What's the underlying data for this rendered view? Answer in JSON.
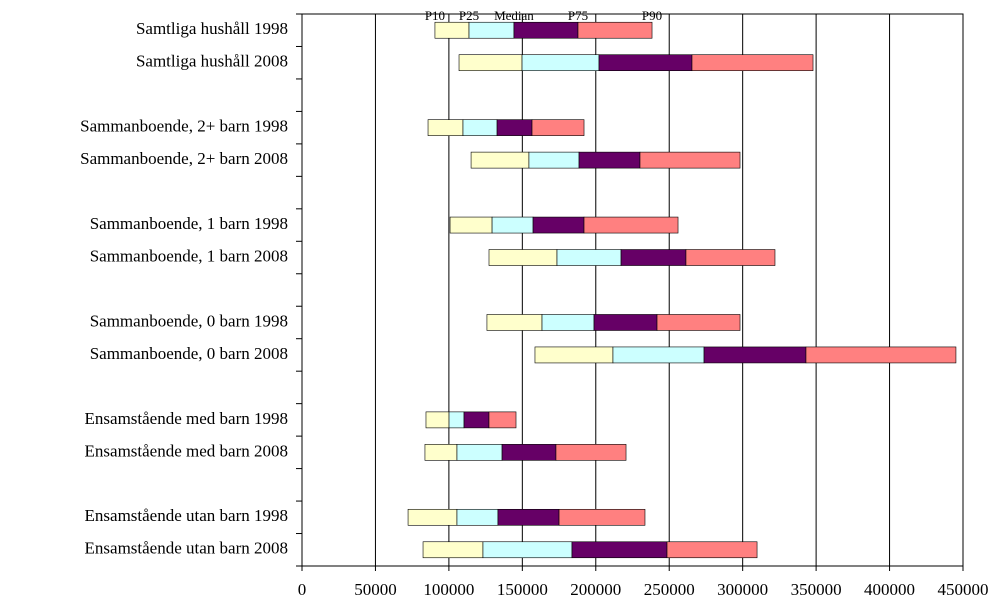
{
  "chart_data": {
    "type": "floating-bar",
    "categories": [
      "Samtliga hushåll 1998",
      "Samtliga hushåll 2008",
      null,
      "Sammanboende, 2+ barn 1998",
      "Sammanboende, 2+ barn 2008",
      null,
      "Sammanboende, 1 barn 1998",
      "Sammanboende, 1 barn 2008",
      null,
      "Sammanboende, 0 barn 1998",
      "Sammanboende, 0 barn 2008",
      null,
      "Ensamstående med barn 1998",
      "Ensamstående med barn 2008",
      null,
      "Ensamstående utan barn 1998",
      "Ensamstående utan barn 2008"
    ],
    "series": [
      {
        "name": "P10",
        "color": "#ffffff",
        "values": [
          90500,
          106900,
          null,
          85800,
          115100,
          null,
          100800,
          127300,
          null,
          125900,
          158600,
          null,
          84400,
          83700,
          null,
          72200,
          82400
        ]
      },
      {
        "name": "P25",
        "color": "#ffffcc",
        "values": [
          113700,
          149800,
          null,
          109600,
          154500,
          null,
          129400,
          173600,
          null,
          163400,
          211700,
          null,
          100100,
          105500,
          null,
          105500,
          123200
        ]
      },
      {
        "name": "Median",
        "color": "#ccffff",
        "values": [
          144300,
          202200,
          null,
          132800,
          188600,
          null,
          157300,
          217200,
          null,
          198800,
          273700,
          null,
          110300,
          136200,
          null,
          133400,
          183800
        ]
      },
      {
        "name": "P75",
        "color": "#660066",
        "values": [
          187900,
          265500,
          null,
          156600,
          230100,
          null,
          192000,
          261400,
          null,
          241700,
          343100,
          null,
          127300,
          172900,
          null,
          175000,
          248500
        ]
      },
      {
        "name": "P90",
        "color": "#ff8080",
        "values": [
          238300,
          347900,
          null,
          192000,
          298200,
          null,
          256000,
          322000,
          null,
          298200,
          445200,
          null,
          145700,
          220600,
          null,
          233500,
          309800
        ]
      }
    ],
    "xlim": [
      0,
      450000
    ],
    "xticks": [
      0,
      50000,
      100000,
      150000,
      200000,
      250000,
      300000,
      350000,
      400000,
      450000
    ],
    "grid": true
  }
}
